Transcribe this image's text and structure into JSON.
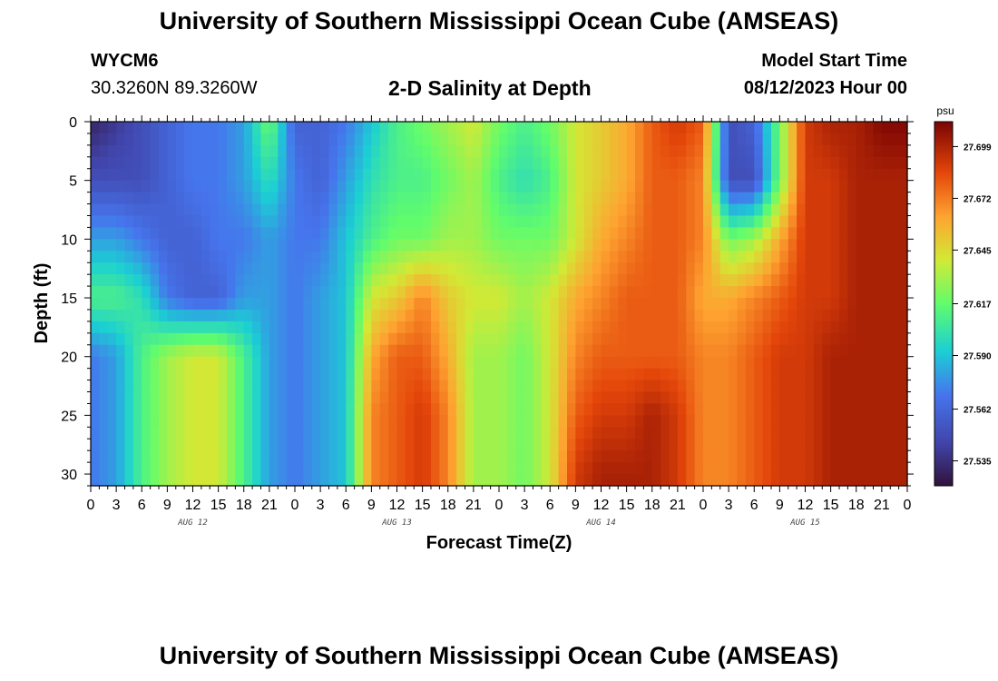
{
  "header": {
    "title": "University of Southern Mississippi Ocean Cube (AMSEAS)",
    "station_id": "WYCM6",
    "coordinates": "30.3260N  89.3260W",
    "subtitle": "2-D Salinity at Depth",
    "model_start_label": "Model Start Time",
    "model_start_value": "08/12/2023 Hour 00"
  },
  "footer": {
    "title": "University of Southern Mississippi Ocean Cube (AMSEAS)"
  },
  "chart_data": {
    "type": "heatmap",
    "title": "2-D Salinity at Depth",
    "xlabel": "Forecast Time(Z)",
    "ylabel": "Depth (ft)",
    "x_tick_labels": [
      "0",
      "3",
      "6",
      "9",
      "12",
      "15",
      "18",
      "21",
      "0",
      "3",
      "6",
      "9",
      "12",
      "15",
      "18",
      "21",
      "0",
      "3",
      "6",
      "9",
      "12",
      "15",
      "18",
      "21",
      "0",
      "3",
      "6",
      "9",
      "12",
      "15",
      "18",
      "21",
      "0"
    ],
    "x_day_labels": [
      "AUG 12",
      "AUG 13",
      "AUG 14",
      "AUG 15"
    ],
    "xlim": [
      0,
      96
    ],
    "ylim": [
      0,
      31
    ],
    "y_ticks": [
      0,
      5,
      10,
      15,
      20,
      25,
      30
    ],
    "colorbar": {
      "unit": "psu",
      "min": 27.522,
      "max": 27.712,
      "ticks": [
        27.699,
        27.672,
        27.645,
        27.617,
        27.59,
        27.562,
        27.535
      ]
    },
    "depths": [
      0,
      5,
      10,
      15,
      20,
      25,
      30
    ],
    "times": [
      0,
      3,
      6,
      9,
      12,
      15,
      18,
      21,
      24,
      27,
      30,
      33,
      36,
      39,
      42,
      45,
      48,
      51,
      54,
      57,
      60,
      63,
      66,
      69,
      72,
      75,
      78,
      81,
      84,
      87,
      90,
      93,
      96
    ],
    "values": [
      [
        27.53,
        27.54,
        27.55,
        27.56,
        27.57,
        27.57,
        27.58,
        27.62,
        27.56,
        27.56,
        27.57,
        27.59,
        27.61,
        27.62,
        27.63,
        27.64,
        27.62,
        27.61,
        27.62,
        27.64,
        27.65,
        27.66,
        27.68,
        27.69,
        27.68,
        27.55,
        27.56,
        27.62,
        27.69,
        27.7,
        27.7,
        27.71,
        27.71
      ],
      [
        27.55,
        27.55,
        27.55,
        27.56,
        27.57,
        27.57,
        27.58,
        27.6,
        27.57,
        27.56,
        27.58,
        27.6,
        27.61,
        27.61,
        27.62,
        27.63,
        27.61,
        27.6,
        27.61,
        27.64,
        27.65,
        27.66,
        27.68,
        27.68,
        27.67,
        27.55,
        27.55,
        27.62,
        27.69,
        27.69,
        27.7,
        27.7,
        27.7
      ],
      [
        27.58,
        27.58,
        27.57,
        27.56,
        27.56,
        27.57,
        27.57,
        27.58,
        27.57,
        27.57,
        27.59,
        27.61,
        27.62,
        27.62,
        27.63,
        27.63,
        27.62,
        27.62,
        27.62,
        27.64,
        27.66,
        27.67,
        27.68,
        27.68,
        27.67,
        27.62,
        27.63,
        27.66,
        27.69,
        27.69,
        27.7,
        27.7,
        27.7
      ],
      [
        27.61,
        27.61,
        27.6,
        27.57,
        27.56,
        27.56,
        27.58,
        27.58,
        27.57,
        27.58,
        27.59,
        27.64,
        27.65,
        27.67,
        27.65,
        27.64,
        27.64,
        27.63,
        27.64,
        27.66,
        27.67,
        27.68,
        27.68,
        27.68,
        27.66,
        27.66,
        27.67,
        27.68,
        27.69,
        27.69,
        27.7,
        27.7,
        27.7
      ],
      [
        27.57,
        27.58,
        27.61,
        27.63,
        27.64,
        27.64,
        27.61,
        27.58,
        27.57,
        27.58,
        27.59,
        27.66,
        27.68,
        27.68,
        27.66,
        27.63,
        27.63,
        27.62,
        27.64,
        27.67,
        27.68,
        27.68,
        27.68,
        27.68,
        27.67,
        27.67,
        27.68,
        27.69,
        27.69,
        27.7,
        27.7,
        27.7,
        27.7
      ],
      [
        27.57,
        27.58,
        27.61,
        27.63,
        27.64,
        27.64,
        27.61,
        27.58,
        27.57,
        27.58,
        27.59,
        27.67,
        27.68,
        27.69,
        27.67,
        27.63,
        27.63,
        27.62,
        27.64,
        27.68,
        27.69,
        27.69,
        27.7,
        27.69,
        27.67,
        27.67,
        27.68,
        27.69,
        27.69,
        27.7,
        27.7,
        27.7,
        27.7
      ],
      [
        27.57,
        27.58,
        27.61,
        27.63,
        27.64,
        27.64,
        27.61,
        27.58,
        27.57,
        27.58,
        27.59,
        27.67,
        27.68,
        27.69,
        27.67,
        27.63,
        27.63,
        27.62,
        27.64,
        27.69,
        27.7,
        27.7,
        27.7,
        27.69,
        27.67,
        27.67,
        27.68,
        27.69,
        27.69,
        27.7,
        27.7,
        27.7,
        27.7
      ]
    ]
  }
}
